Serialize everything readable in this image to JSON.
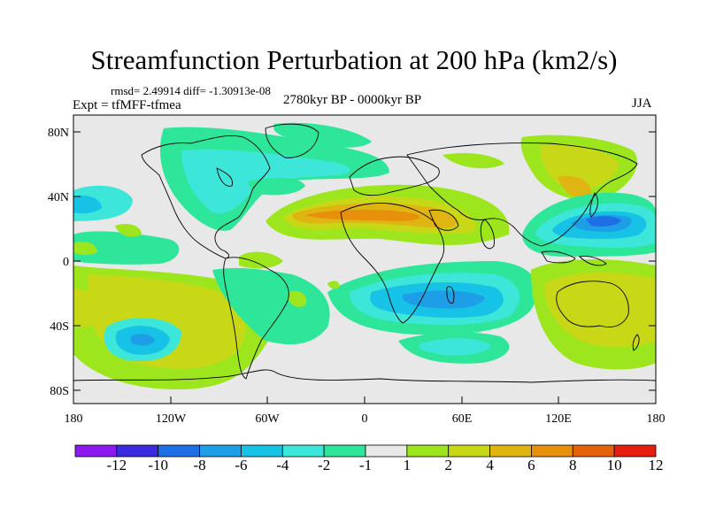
{
  "title": "Streamfunction Perturbation at 200 hPa (km2/s)",
  "stats": "rmsd= 2.49914 diff= -1.30913e-08",
  "experiment": "Expt = tfMFF-tfmea",
  "period": "2780kyr BP - 0000kyr BP",
  "season": "JJA",
  "map": {
    "lat_ticks": [
      "80N",
      "40N",
      "0",
      "40S",
      "80S"
    ],
    "lon_ticks": [
      "180",
      "120W",
      "60W",
      "0",
      "60E",
      "120E",
      "180"
    ]
  },
  "colorbar": {
    "labels": [
      "-12",
      "-10",
      "-8",
      "-6",
      "-4",
      "-2",
      "-1",
      "1",
      "2",
      "4",
      "6",
      "8",
      "10",
      "12"
    ],
    "colors": [
      "#8b19f0",
      "#3a2be0",
      "#1e6ee6",
      "#1e9ee6",
      "#16c2e6",
      "#3ce6d8",
      "#2ee69a",
      "#e8e8e8",
      "#9de61e",
      "#c8d817",
      "#e0b411",
      "#e6900c",
      "#e6620a",
      "#e61e10"
    ]
  }
}
